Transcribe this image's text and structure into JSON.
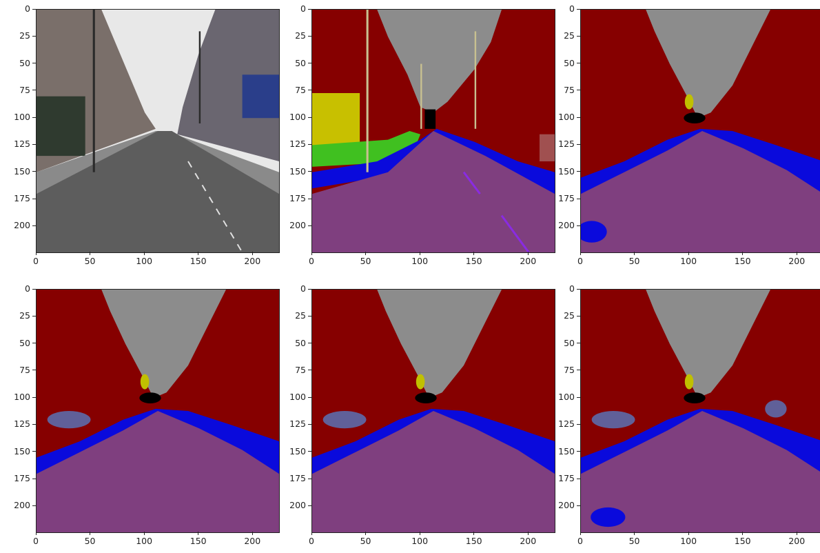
{
  "figure": {
    "colors": {
      "sky": "#8c8c8c",
      "building": "#860000",
      "road": "#7f3f7f",
      "pavement": "#0a0adc",
      "pole": "#c8c090",
      "sign": "#c0c000",
      "tree": "#40c020",
      "vegetation_yellow": "#c8c000",
      "void": "#000000",
      "car": "#40407f",
      "lane_mark": "#8a2be2",
      "fence": "#606099",
      "pedestrian": "#a05050"
    },
    "panels": [
      {
        "id": "input-photo",
        "kind": "photo",
        "x_ticks": [
          "0",
          "50",
          "100",
          "150",
          "200"
        ],
        "y_ticks": [
          "0",
          "25",
          "50",
          "75",
          "100",
          "125",
          "150",
          "175",
          "200"
        ]
      },
      {
        "id": "ground-truth",
        "kind": "segmentation",
        "x_ticks": [
          "0",
          "50",
          "100",
          "150",
          "200"
        ],
        "y_ticks": [
          "0",
          "25",
          "50",
          "75",
          "100",
          "125",
          "150",
          "175",
          "200"
        ]
      },
      {
        "id": "prediction-1",
        "kind": "segmentation",
        "x_ticks": [
          "0",
          "50",
          "100",
          "150",
          "200"
        ],
        "y_ticks": [
          "0",
          "25",
          "50",
          "75",
          "100",
          "125",
          "150",
          "175",
          "200"
        ]
      },
      {
        "id": "prediction-2",
        "kind": "segmentation",
        "x_ticks": [
          "0",
          "50",
          "100",
          "150",
          "200"
        ],
        "y_ticks": [
          "0",
          "25",
          "50",
          "75",
          "100",
          "125",
          "150",
          "175",
          "200"
        ]
      },
      {
        "id": "prediction-3",
        "kind": "segmentation",
        "x_ticks": [
          "0",
          "50",
          "100",
          "150",
          "200"
        ],
        "y_ticks": [
          "0",
          "25",
          "50",
          "75",
          "100",
          "125",
          "150",
          "175",
          "200"
        ]
      },
      {
        "id": "prediction-4",
        "kind": "segmentation",
        "x_ticks": [
          "0",
          "50",
          "100",
          "150",
          "200"
        ],
        "y_ticks": [
          "0",
          "25",
          "50",
          "75",
          "100",
          "125",
          "150",
          "175",
          "200"
        ]
      }
    ]
  }
}
